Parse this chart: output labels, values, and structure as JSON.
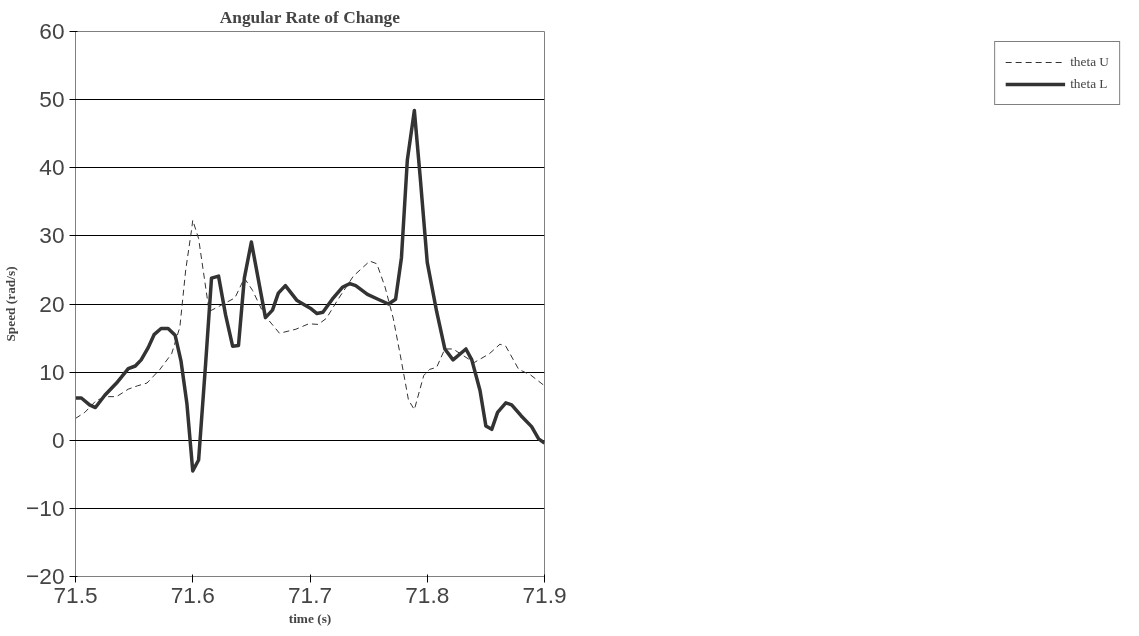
{
  "chart_data": {
    "type": "line",
    "title": "Angular Rate of Change",
    "xlabel": "time (s)",
    "ylabel": "Speed (rad/s)",
    "xlim": [
      71.5,
      71.9
    ],
    "xticks": [
      71.5,
      71.6,
      71.7,
      71.8,
      71.9
    ],
    "ylim": [
      -20,
      60
    ],
    "yticks": [
      -20,
      -10,
      0,
      10,
      20,
      30,
      40,
      50,
      60
    ],
    "grid": "y",
    "legend": "right",
    "marker": "none",
    "series": [
      {
        "name": "theta U",
        "color": "#333333",
        "line_style": "dashed",
        "x": [
          71.5,
          71.508,
          71.518,
          71.528,
          71.535,
          71.545,
          71.553,
          71.561,
          71.572,
          71.582,
          71.589,
          71.594,
          71.599,
          71.6,
          71.605,
          71.614,
          71.624,
          71.636,
          71.644,
          71.651,
          71.661,
          71.674,
          71.688,
          71.699,
          71.707,
          71.714,
          71.724,
          71.737,
          71.751,
          71.757,
          71.764,
          71.771,
          71.777,
          71.784,
          71.789,
          71.797,
          71.802,
          71.808,
          71.815,
          71.822,
          71.83,
          71.84,
          71.853,
          71.862,
          71.867,
          71.878,
          71.888,
          71.9
        ],
        "values": [
          3.2,
          4.1,
          5.9,
          6.4,
          6.4,
          7.5,
          8.0,
          8.4,
          10.4,
          12.7,
          16.6,
          25,
          30.9,
          32.3,
          29.6,
          18.9,
          19.8,
          20.9,
          23.8,
          22.0,
          18.4,
          15.7,
          16.3,
          17.1,
          17.0,
          17.9,
          20.7,
          24.1,
          26.3,
          25.9,
          22.5,
          17.9,
          12.5,
          5.9,
          4.5,
          9.5,
          10.4,
          10.7,
          13.4,
          13.4,
          12.5,
          11.4,
          12.7,
          14.1,
          13.8,
          10.4,
          9.6,
          8.0
        ]
      },
      {
        "name": "theta L",
        "color": "#333333",
        "line_style": "solid",
        "x": [
          71.5,
          71.505,
          71.512,
          71.517,
          71.525,
          71.535,
          71.545,
          71.551,
          71.556,
          71.562,
          71.567,
          71.573,
          71.579,
          71.585,
          71.59,
          71.595,
          71.6,
          71.605,
          71.611,
          71.616,
          71.622,
          71.628,
          71.634,
          71.639,
          71.644,
          71.65,
          71.662,
          71.668,
          71.673,
          71.679,
          71.689,
          71.694,
          71.701,
          71.706,
          71.711,
          71.719,
          71.728,
          71.734,
          71.739,
          71.749,
          71.758,
          71.767,
          71.773,
          71.778,
          71.783,
          71.789,
          71.794,
          71.8,
          71.808,
          71.815,
          71.822,
          71.833,
          71.838,
          71.845,
          71.85,
          71.855,
          71.86,
          71.867,
          71.872,
          71.88,
          71.889,
          71.895,
          71.9
        ],
        "values": [
          6.2,
          6.2,
          5.2,
          4.8,
          6.6,
          8.4,
          10.5,
          10.9,
          11.8,
          13.6,
          15.5,
          16.4,
          16.4,
          15.4,
          11.6,
          5.4,
          -4.5,
          -2.9,
          11.3,
          23.8,
          24.1,
          18.4,
          13.8,
          13.9,
          23.8,
          29.1,
          18.0,
          19.1,
          21.6,
          22.7,
          20.5,
          20.0,
          19.3,
          18.6,
          18.8,
          20.7,
          22.5,
          23.0,
          22.7,
          21.4,
          20.7,
          20.0,
          20.7,
          26.8,
          41.1,
          48.4,
          38.6,
          26.1,
          18.9,
          13.4,
          11.8,
          13.4,
          11.8,
          7.3,
          2.1,
          1.6,
          4.1,
          5.5,
          5.2,
          3.6,
          2.0,
          0.2,
          -0.4
        ]
      }
    ]
  }
}
